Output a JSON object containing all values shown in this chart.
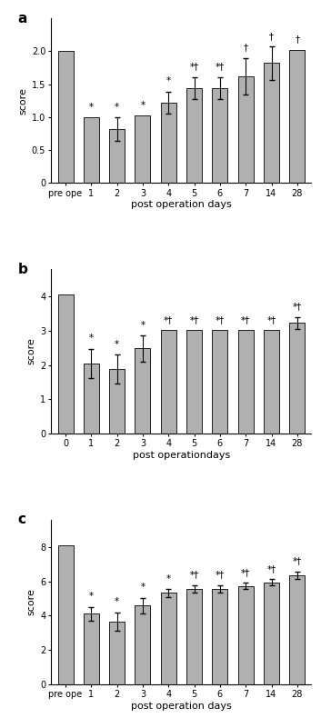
{
  "chart_a": {
    "label": "a",
    "x_labels": [
      "pre ope",
      "1",
      "2",
      "3",
      "4",
      "5",
      "6",
      "7",
      "14",
      "28"
    ],
    "values": [
      2.0,
      1.0,
      0.82,
      1.02,
      1.22,
      1.44,
      1.44,
      1.62,
      1.82,
      2.02
    ],
    "errors": [
      0.0,
      0.0,
      0.18,
      0.0,
      0.17,
      0.17,
      0.17,
      0.28,
      0.25,
      0.0
    ],
    "annotations": [
      "",
      "*",
      "*",
      "*",
      "*",
      "*†",
      "*†",
      "†",
      "†",
      "†"
    ],
    "ylabel": "score",
    "xlabel": "post operation days",
    "ylim": [
      0,
      2.5
    ],
    "yticks": [
      0,
      0.5,
      1.0,
      1.5,
      2.0
    ]
  },
  "chart_b": {
    "label": "b",
    "x_labels": [
      "0",
      "1",
      "2",
      "3",
      "4",
      "5",
      "6",
      "7",
      "14",
      "28"
    ],
    "values": [
      4.05,
      2.05,
      1.88,
      2.48,
      3.02,
      3.02,
      3.02,
      3.02,
      3.02,
      3.22
    ],
    "errors": [
      0.0,
      0.42,
      0.42,
      0.38,
      0.0,
      0.0,
      0.0,
      0.0,
      0.0,
      0.18
    ],
    "annotations": [
      "",
      "*",
      "*",
      "*",
      "*†",
      "*†",
      "*†",
      "*†",
      "*†",
      "*†"
    ],
    "ylabel": "score",
    "xlabel": "post operationdays",
    "ylim": [
      0,
      4.8
    ],
    "yticks": [
      0,
      1,
      2,
      3,
      4
    ]
  },
  "chart_c": {
    "label": "c",
    "x_labels": [
      "pre ope",
      "1",
      "2",
      "3",
      "4",
      "5",
      "6",
      "7",
      "14",
      "28"
    ],
    "values": [
      8.1,
      4.1,
      3.65,
      4.6,
      5.32,
      5.55,
      5.55,
      5.72,
      5.95,
      6.35
    ],
    "errors": [
      0.0,
      0.42,
      0.55,
      0.45,
      0.22,
      0.22,
      0.22,
      0.18,
      0.18,
      0.22
    ],
    "annotations": [
      "",
      "*",
      "*",
      "*",
      "*",
      "*†",
      "*†",
      "*†",
      "*†",
      "*†"
    ],
    "ylabel": "score",
    "xlabel": "post operation days",
    "ylim": [
      0,
      9.6
    ],
    "yticks": [
      0,
      2,
      4,
      6,
      8
    ]
  },
  "bar_color": "#b0b0b0",
  "bar_edge_color": "#000000",
  "bar_edge_width": 0.6,
  "error_color": "#000000",
  "error_capsize": 2,
  "error_linewidth": 0.8,
  "annotation_fontsize": 7.5,
  "tick_fontsize": 7,
  "xlabel_fontsize": 8,
  "ylabel_fontsize": 8,
  "label_fontsize": 11
}
